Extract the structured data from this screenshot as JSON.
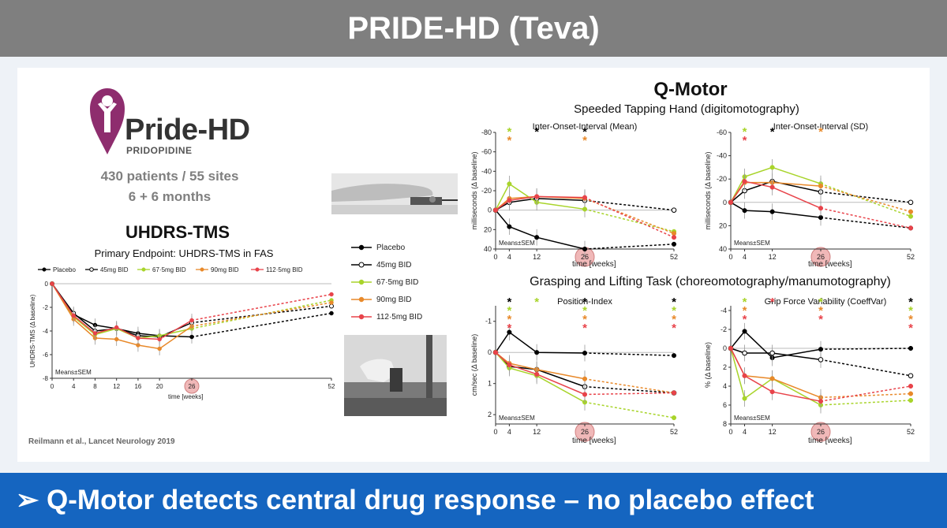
{
  "header": {
    "title": "PRIDE-HD (Teva)"
  },
  "footer": {
    "text": "➢ Q-Motor detects central drug response – no placebo effect"
  },
  "left": {
    "logo_name": "Pride-HD",
    "logo_sub": "PRIDOPIDINE",
    "patients_line": "430 patients / 55 sites",
    "duration_line": "6 + 6 months",
    "section_title": "UHDRS-TMS",
    "citation": "Reilmann et al., Lancet Neurology 2019"
  },
  "right": {
    "title": "Q-Motor",
    "tapping_title": "Speeded Tapping Hand (digitomotography)",
    "grasping_title": "Grasping and Lifting Task (choreomotography/manumotography)"
  },
  "mid_legend": [
    "Placebo",
    "45mg BID",
    "67·5mg BID",
    "90mg BID",
    "112·5mg BID"
  ],
  "colors": {
    "placebo": "#000000",
    "d45": "#000000",
    "d67": "#a8d42a",
    "d90": "#e8892a",
    "d112": "#e8434a",
    "title_bar": "#7f7f7f",
    "bottom_bar": "#1565c0",
    "highlight": "#f0b8b8",
    "logo": "#8e2d6e"
  },
  "chart_data": [
    {
      "id": "uhdrs",
      "type": "line",
      "title": "Primary Endpoint: UHDRS-TMS in FAS",
      "xlabel": "time [weeks]",
      "ylabel": "UHDRS-TMS (Δ baseline)",
      "x_ticks": [
        0,
        4,
        8,
        12,
        16,
        20,
        26,
        52
      ],
      "y_ticks": [
        0,
        -2,
        -4,
        -6,
        -8
      ],
      "xlim": [
        0,
        52
      ],
      "ylim": [
        0,
        -8
      ],
      "highlight_x": 26,
      "note": "Means±SEM",
      "legend": "top",
      "series": [
        {
          "name": "Placebo",
          "key": "placebo",
          "x": [
            0,
            4,
            8,
            12,
            16,
            20,
            26
          ],
          "y": [
            0,
            -2.6,
            -3.5,
            -3.8,
            -4.2,
            -4.4,
            -4.5
          ],
          "x_ext": [
            26,
            52
          ],
          "y_ext": [
            -4.5,
            -2.5
          ]
        },
        {
          "name": "45mg BID",
          "key": "d45",
          "x": [
            0,
            4,
            8,
            12,
            16,
            20,
            26
          ],
          "y": [
            0,
            -2.5,
            -4.0,
            -3.8,
            -4.4,
            -4.5,
            -3.3
          ],
          "x_ext": [
            26,
            52
          ],
          "y_ext": [
            -3.3,
            -1.9
          ]
        },
        {
          "name": "67·5mg BID",
          "key": "d67",
          "x": [
            0,
            4,
            8,
            12,
            16,
            20,
            26
          ],
          "y": [
            0,
            -2.8,
            -4.3,
            -3.8,
            -4.6,
            -4.4,
            -3.8
          ],
          "x_ext": [
            26,
            52
          ],
          "y_ext": [
            -3.8,
            -1.4
          ]
        },
        {
          "name": "90mg BID",
          "key": "d90",
          "x": [
            0,
            4,
            8,
            12,
            16,
            20,
            26
          ],
          "y": [
            0,
            -3.0,
            -4.6,
            -4.7,
            -5.2,
            -5.5,
            -3.6
          ],
          "x_ext": [
            26,
            52
          ],
          "y_ext": [
            -3.6,
            -1.6
          ]
        },
        {
          "name": "112·5mg BID",
          "key": "d112",
          "x": [
            0,
            4,
            8,
            12,
            16,
            20,
            26
          ],
          "y": [
            0,
            -2.7,
            -4.2,
            -3.7,
            -4.6,
            -4.7,
            -3.1
          ],
          "x_ext": [
            26,
            52
          ],
          "y_ext": [
            -3.1,
            -0.9
          ]
        }
      ]
    },
    {
      "id": "ioi-mean",
      "type": "line",
      "title": "Inter-Onset-Interval (Mean)",
      "xlabel": "time [weeks]",
      "ylabel": "milliseconds (Δ baseline)",
      "x_ticks": [
        0,
        4,
        12,
        26,
        52
      ],
      "y_ticks": [
        -80,
        -60,
        -40,
        -20,
        0,
        20,
        40
      ],
      "xlim": [
        0,
        52
      ],
      "ylim": [
        -80,
        40
      ],
      "highlight_x": 26,
      "note": "Means±SEM",
      "series": [
        {
          "name": "Placebo",
          "key": "placebo",
          "x": [
            0,
            4,
            12,
            26
          ],
          "y": [
            0,
            17,
            28,
            40
          ],
          "x_ext": [
            26,
            52
          ],
          "y_ext": [
            40,
            35
          ]
        },
        {
          "name": "45mg BID",
          "key": "d45",
          "x": [
            0,
            4,
            12,
            26
          ],
          "y": [
            0,
            -8,
            -12,
            -10
          ],
          "x_ext": [
            26,
            52
          ],
          "y_ext": [
            -10,
            0
          ]
        },
        {
          "name": "67·5mg BID",
          "key": "d67",
          "x": [
            0,
            4,
            12,
            26
          ],
          "y": [
            0,
            -27,
            -8,
            -1
          ],
          "x_ext": [
            26,
            52
          ],
          "y_ext": [
            -1,
            22
          ]
        },
        {
          "name": "90mg BID",
          "key": "d90",
          "x": [
            0,
            4,
            12,
            26
          ],
          "y": [
            0,
            -12,
            -14,
            -12
          ],
          "x_ext": [
            26,
            52
          ],
          "y_ext": [
            -12,
            24
          ]
        },
        {
          "name": "112·5mg BID",
          "key": "d112",
          "x": [
            0,
            4,
            12,
            26
          ],
          "y": [
            0,
            -10,
            -14,
            -13
          ],
          "x_ext": [
            26,
            52
          ],
          "y_ext": [
            -13,
            28
          ]
        }
      ]
    },
    {
      "id": "ioi-sd",
      "type": "line",
      "title": "Inter-Onset-Interval (SD)",
      "xlabel": "time [weeks]",
      "ylabel": "milliseconds (Δ baseline)",
      "x_ticks": [
        0,
        4,
        12,
        26,
        52
      ],
      "y_ticks": [
        -60,
        -40,
        -20,
        0,
        20,
        40
      ],
      "xlim": [
        0,
        52
      ],
      "ylim": [
        -60,
        40
      ],
      "highlight_x": 26,
      "note": "Means±SEM",
      "series": [
        {
          "name": "Placebo",
          "key": "placebo",
          "x": [
            0,
            4,
            12,
            26
          ],
          "y": [
            0,
            7,
            8,
            13
          ],
          "x_ext": [
            26,
            52
          ],
          "y_ext": [
            13,
            22
          ]
        },
        {
          "name": "45mg BID",
          "key": "d45",
          "x": [
            0,
            4,
            12,
            26
          ],
          "y": [
            0,
            -10,
            -18,
            -9
          ],
          "x_ext": [
            26,
            52
          ],
          "y_ext": [
            -9,
            0
          ]
        },
        {
          "name": "67·5mg BID",
          "key": "d67",
          "x": [
            0,
            4,
            12,
            26
          ],
          "y": [
            0,
            -22,
            -30,
            -16
          ],
          "x_ext": [
            26,
            52
          ],
          "y_ext": [
            -16,
            12
          ]
        },
        {
          "name": "90mg BID",
          "key": "d90",
          "x": [
            0,
            4,
            12,
            26
          ],
          "y": [
            0,
            -17,
            -17,
            -14
          ],
          "x_ext": [
            26,
            52
          ],
          "y_ext": [
            -14,
            8
          ]
        },
        {
          "name": "112·5mg BID",
          "key": "d112",
          "x": [
            0,
            4,
            12,
            26
          ],
          "y": [
            0,
            -18,
            -13,
            5
          ],
          "x_ext": [
            26,
            52
          ],
          "y_ext": [
            5,
            22
          ]
        }
      ]
    },
    {
      "id": "position-index",
      "type": "line",
      "title": "Position-Index",
      "xlabel": "time [weeks]",
      "ylabel": "cm/sec (Δ baseline)",
      "x_ticks": [
        0,
        4,
        12,
        26,
        52
      ],
      "y_ticks": [
        -1,
        0,
        1,
        2
      ],
      "xlim": [
        0,
        52
      ],
      "ylim": [
        -1.5,
        2.3
      ],
      "highlight_x": 26,
      "note": "Means±SEM",
      "series": [
        {
          "name": "Placebo",
          "key": "placebo",
          "x": [
            0,
            4,
            12,
            26
          ],
          "y": [
            0,
            -0.65,
            0,
            0.02
          ],
          "x_ext": [
            26,
            52
          ],
          "y_ext": [
            0.02,
            0.1
          ]
        },
        {
          "name": "45mg BID",
          "key": "d45",
          "x": [
            0,
            4,
            12,
            26
          ],
          "y": [
            0,
            0.45,
            0.55,
            1.1
          ],
          "x_ext": [
            26,
            52
          ],
          "y_ext": [
            1.1,
            1.3
          ]
        },
        {
          "name": "67·5mg BID",
          "key": "d67",
          "x": [
            0,
            4,
            12,
            26
          ],
          "y": [
            0,
            0.5,
            0.75,
            1.6
          ],
          "x_ext": [
            26,
            52
          ],
          "y_ext": [
            1.6,
            2.1
          ]
        },
        {
          "name": "90mg BID",
          "key": "d90",
          "x": [
            0,
            4,
            12,
            26
          ],
          "y": [
            0,
            0.35,
            0.55,
            0.85
          ],
          "x_ext": [
            26,
            52
          ],
          "y_ext": [
            0.85,
            1.3
          ]
        },
        {
          "name": "112·5mg BID",
          "key": "d112",
          "x": [
            0,
            4,
            12,
            26
          ],
          "y": [
            0,
            0.4,
            0.7,
            1.35
          ],
          "x_ext": [
            26,
            52
          ],
          "y_ext": [
            1.35,
            1.3
          ]
        }
      ]
    },
    {
      "id": "grip-force",
      "type": "line",
      "title": "Grip Force Variability (CoeffVar)",
      "xlabel": "time [weeks]",
      "ylabel": "% (Δ baseline)",
      "x_ticks": [
        0,
        4,
        12,
        26,
        52
      ],
      "y_ticks": [
        -4,
        -2,
        0,
        2,
        4,
        6,
        8
      ],
      "xlim": [
        0,
        52
      ],
      "ylim": [
        -4.5,
        8
      ],
      "highlight_x": 26,
      "note": "Means±SEM",
      "series": [
        {
          "name": "Placebo",
          "key": "placebo",
          "x": [
            0,
            4,
            12,
            26
          ],
          "y": [
            0,
            -1.8,
            1.0,
            0.1
          ],
          "x_ext": [
            26,
            52
          ],
          "y_ext": [
            0.1,
            0
          ]
        },
        {
          "name": "45mg BID",
          "key": "d45",
          "x": [
            0,
            4,
            12,
            26
          ],
          "y": [
            0,
            0.5,
            0.5,
            1.2
          ],
          "x_ext": [
            26,
            52
          ],
          "y_ext": [
            1.2,
            2.9
          ]
        },
        {
          "name": "67·5mg BID",
          "key": "d67",
          "x": [
            0,
            4,
            12,
            26
          ],
          "y": [
            0,
            5.3,
            3.2,
            6.0
          ],
          "x_ext": [
            26,
            52
          ],
          "y_ext": [
            6.0,
            5.5
          ]
        },
        {
          "name": "90mg BID",
          "key": "d90",
          "x": [
            0,
            4,
            12,
            26
          ],
          "y": [
            0,
            2.9,
            3.2,
            5.2
          ],
          "x_ext": [
            26,
            52
          ],
          "y_ext": [
            5.2,
            4.8
          ]
        },
        {
          "name": "112·5mg BID",
          "key": "d112",
          "x": [
            0,
            4,
            12,
            26
          ],
          "y": [
            0,
            2.9,
            4.6,
            5.6
          ],
          "x_ext": [
            26,
            52
          ],
          "y_ext": [
            5.6,
            4.0
          ]
        }
      ]
    }
  ],
  "asterisks": [
    {
      "chart": "ioi-mean",
      "x": 4,
      "stack": [
        "d67",
        "d90"
      ]
    },
    {
      "chart": "ioi-mean",
      "x": 12,
      "stack": [
        "placebo"
      ]
    },
    {
      "chart": "ioi-mean",
      "x": 26,
      "stack": [
        "placebo",
        "d90"
      ]
    },
    {
      "chart": "ioi-sd",
      "x": 4,
      "stack": [
        "d67",
        "d112"
      ]
    },
    {
      "chart": "ioi-sd",
      "x": 12,
      "stack": [
        "placebo"
      ]
    },
    {
      "chart": "ioi-sd",
      "x": 26,
      "stack": [
        "d90"
      ]
    },
    {
      "chart": "position-index",
      "x": 4,
      "stack": [
        "placebo",
        "d67",
        "d90",
        "d112"
      ]
    },
    {
      "chart": "position-index",
      "x": 12,
      "stack": [
        "d67"
      ]
    },
    {
      "chart": "position-index",
      "x": 26,
      "stack": [
        "placebo",
        "d67",
        "d90",
        "d112"
      ]
    },
    {
      "chart": "position-index",
      "x": 52,
      "stack": [
        "placebo",
        "d67",
        "d90",
        "d112"
      ]
    },
    {
      "chart": "grip-force",
      "x": 4,
      "stack": [
        "d67",
        "d90",
        "d112"
      ]
    },
    {
      "chart": "grip-force",
      "x": 12,
      "stack": [
        "d112"
      ]
    },
    {
      "chart": "grip-force",
      "x": 26,
      "stack": [
        "d67",
        "d90",
        "d112"
      ]
    },
    {
      "chart": "grip-force",
      "x": 52,
      "stack": [
        "placebo",
        "d67",
        "d90",
        "d112"
      ]
    }
  ]
}
